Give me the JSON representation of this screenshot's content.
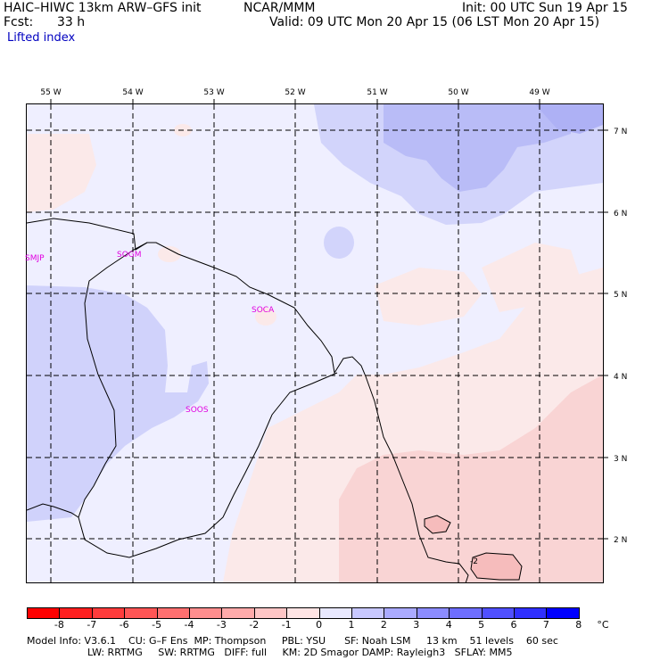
{
  "header": {
    "model": "HAIC–HIWC 13km ARW–GFS init",
    "org": "NCAR/MMM",
    "init": "Init: 00 UTC Sun 19 Apr 15",
    "fcst_label": "Fcst:",
    "fcst_value": "33 h",
    "valid": "Valid: 09 UTC Mon 20 Apr 15 (06 LST Mon 20 Apr 15)",
    "field": "Lifted index"
  },
  "map": {
    "lon_labels": [
      "55 W",
      "54 W",
      "53 W",
      "52 W",
      "51 W",
      "50 W",
      "49 W"
    ],
    "lat_labels": [
      "7 N",
      "6 N",
      "5 N",
      "4 N",
      "3 N",
      "2 N"
    ],
    "stations": [
      "SMJP",
      "SOGM",
      "SOCA",
      "SOOS"
    ],
    "contour_label": "-2"
  },
  "colorbar": {
    "ticks": [
      "-8",
      "-7",
      "-6",
      "-5",
      "-4",
      "-3",
      "-2",
      "-1",
      "0",
      "1",
      "2",
      "3",
      "4",
      "5",
      "6",
      "7",
      "8"
    ],
    "unit": "°C",
    "colors": [
      "#ff0000",
      "#ff2020",
      "#ff3c3c",
      "#ff5555",
      "#ff7070",
      "#ff8e8e",
      "#ffaaaa",
      "#ffc6c6",
      "#ffe4e4",
      "#e8e8ff",
      "#c8c8ff",
      "#aaaaff",
      "#8c8cff",
      "#6e6eff",
      "#5050ff",
      "#3030ff",
      "#0000ff"
    ]
  },
  "footer": {
    "line1": "Model Info: V3.6.1    CU: G–F Ens  MP: Thompson     PBL: YSU      SF: Noah LSM     13 km    51 levels    60 sec",
    "line2": "LW: RRTMG     SW: RRTMG   DIFF: full     KM: 2D Smagor DAMP: Rayleigh3   SFLAY: MM5"
  }
}
